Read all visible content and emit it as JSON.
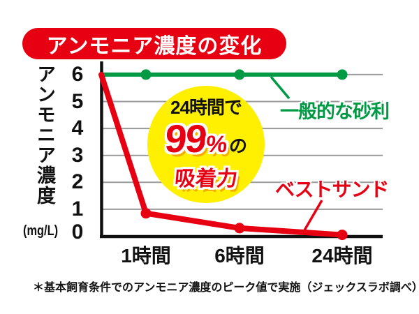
{
  "title": "アンモニア濃度の変化",
  "y_axis": {
    "label": "アンモニア濃度",
    "unit": "(mg/L)",
    "ticks": [
      "6",
      "5",
      "4",
      "3",
      "2",
      "1",
      "0"
    ]
  },
  "x_axis": {
    "ticks": [
      "1時間",
      "6時間",
      "24時間"
    ]
  },
  "legend": {
    "gravel_label": "一般的な砂利",
    "bestsand_label": "ベストサンド"
  },
  "badge": {
    "line1": "24時間で",
    "percent_value": "99",
    "percent_sign": "%",
    "particle": "の",
    "line3": "吸着力"
  },
  "footnote": "＊基本飼育条件でのアンモニア濃度のピーク値で実施（ジェックスラボ調べ）",
  "colors": {
    "red": "#e60012",
    "green": "#009944",
    "yellow": "#ffef00",
    "grid_gray": "#9a9a9a",
    "axis_black": "#111111",
    "badge_shadow_orange": "#f6ab00"
  },
  "chart_data": {
    "type": "line",
    "title": "アンモニア濃度の変化",
    "ylabel": "アンモニア濃度",
    "y_unit": "mg/L",
    "ylim": [
      0,
      6
    ],
    "y_ticks": [
      0,
      1,
      2,
      3,
      4,
      5,
      6
    ],
    "x_point_labels": [
      null,
      "1時間",
      "6時間",
      "24時間"
    ],
    "grid": true,
    "series": [
      {
        "name": "一般的な砂利",
        "color": "#009944",
        "values": [
          6,
          6,
          6,
          6
        ]
      },
      {
        "name": "ベストサンド",
        "color": "#e60012",
        "values": [
          6,
          0.85,
          0.3,
          0.05
        ]
      }
    ],
    "annotation": "24時間で99%の吸着力"
  }
}
